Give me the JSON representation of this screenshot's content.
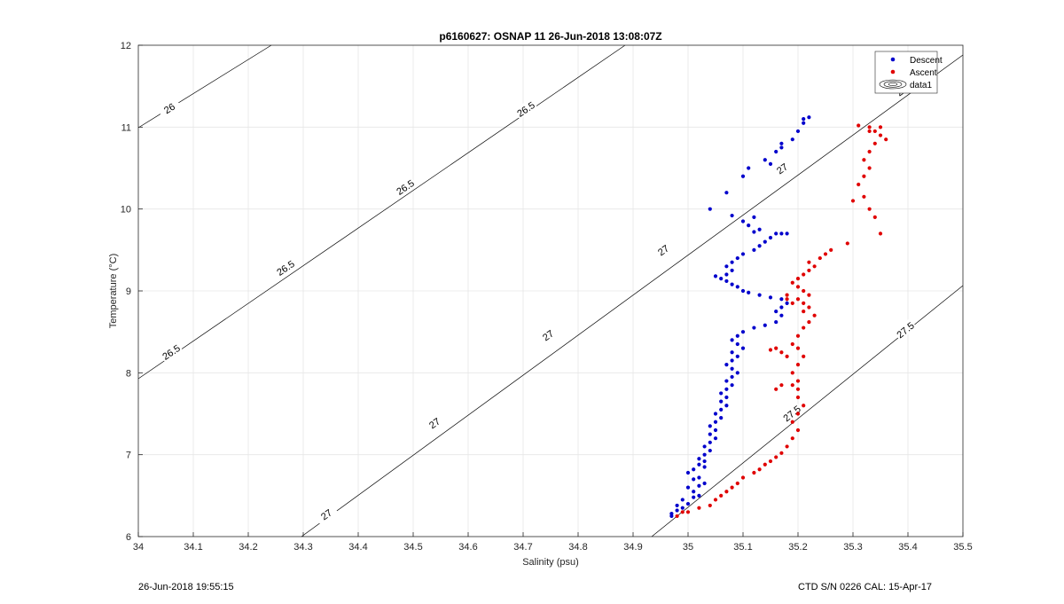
{
  "chart_data": {
    "type": "scatter",
    "title": "p6160627: OSNAP 11 26-Jun-2018 13:08:07Z",
    "xlabel": "Salinity (psu)",
    "ylabel": "Temperature (°C)",
    "xlim": [
      34,
      35.5
    ],
    "ylim": [
      6,
      12
    ],
    "x_ticks": [
      "34",
      "34.1",
      "34.2",
      "34.3",
      "34.4",
      "34.5",
      "34.6",
      "34.7",
      "34.8",
      "34.9",
      "35",
      "35.1",
      "35.2",
      "35.3",
      "35.4",
      "35.5"
    ],
    "y_ticks": [
      "6",
      "7",
      "8",
      "9",
      "10",
      "11",
      "12"
    ],
    "grid": true,
    "legend_position": "top-right",
    "legend": [
      "Descent",
      "Ascent",
      "data1"
    ],
    "colors": {
      "descent": "#0000cc",
      "ascent": "#e00000",
      "contour": "#000000"
    },
    "density_contours": {
      "levels": [
        26,
        26.5,
        27,
        27.5
      ],
      "line_labels": [
        "26",
        "26.5",
        "26.5",
        "26.5",
        "26.5",
        "27",
        "27",
        "27",
        "27",
        "27",
        "27.5",
        "27.5"
      ]
    },
    "series": [
      {
        "name": "Descent",
        "points": [
          [
            34.97,
            6.28
          ],
          [
            34.98,
            6.32
          ],
          [
            34.97,
            6.25
          ],
          [
            34.99,
            6.35
          ],
          [
            34.98,
            6.38
          ],
          [
            35.0,
            6.4
          ],
          [
            34.99,
            6.45
          ],
          [
            35.01,
            6.48
          ],
          [
            35.02,
            6.5
          ],
          [
            35.01,
            6.55
          ],
          [
            35.0,
            6.6
          ],
          [
            35.02,
            6.62
          ],
          [
            35.03,
            6.65
          ],
          [
            35.01,
            6.7
          ],
          [
            35.02,
            6.72
          ],
          [
            35.0,
            6.78
          ],
          [
            35.01,
            6.82
          ],
          [
            35.03,
            6.85
          ],
          [
            35.02,
            6.88
          ],
          [
            35.03,
            6.92
          ],
          [
            35.02,
            6.95
          ],
          [
            35.03,
            7.0
          ],
          [
            35.04,
            7.05
          ],
          [
            35.03,
            7.1
          ],
          [
            35.04,
            7.15
          ],
          [
            35.05,
            7.2
          ],
          [
            35.04,
            7.25
          ],
          [
            35.05,
            7.3
          ],
          [
            35.04,
            7.35
          ],
          [
            35.05,
            7.4
          ],
          [
            35.06,
            7.45
          ],
          [
            35.05,
            7.5
          ],
          [
            35.06,
            7.55
          ],
          [
            35.07,
            7.6
          ],
          [
            35.06,
            7.65
          ],
          [
            35.07,
            7.7
          ],
          [
            35.06,
            7.75
          ],
          [
            35.07,
            7.8
          ],
          [
            35.08,
            7.85
          ],
          [
            35.07,
            7.9
          ],
          [
            35.08,
            7.95
          ],
          [
            35.09,
            8.0
          ],
          [
            35.08,
            8.05
          ],
          [
            35.07,
            8.1
          ],
          [
            35.08,
            8.15
          ],
          [
            35.09,
            8.2
          ],
          [
            35.08,
            8.25
          ],
          [
            35.1,
            8.3
          ],
          [
            35.09,
            8.35
          ],
          [
            35.08,
            8.4
          ],
          [
            35.09,
            8.45
          ],
          [
            35.1,
            8.5
          ],
          [
            35.12,
            8.55
          ],
          [
            35.14,
            8.58
          ],
          [
            35.16,
            8.62
          ],
          [
            35.17,
            8.7
          ],
          [
            35.16,
            8.75
          ],
          [
            35.17,
            8.8
          ],
          [
            35.18,
            8.85
          ],
          [
            35.17,
            8.9
          ],
          [
            35.15,
            8.92
          ],
          [
            35.13,
            8.95
          ],
          [
            35.11,
            8.98
          ],
          [
            35.1,
            9.0
          ],
          [
            35.09,
            9.05
          ],
          [
            35.08,
            9.08
          ],
          [
            35.07,
            9.12
          ],
          [
            35.06,
            9.15
          ],
          [
            35.05,
            9.18
          ],
          [
            35.07,
            9.2
          ],
          [
            35.08,
            9.25
          ],
          [
            35.07,
            9.3
          ],
          [
            35.08,
            9.35
          ],
          [
            35.09,
            9.4
          ],
          [
            35.1,
            9.45
          ],
          [
            35.12,
            9.5
          ],
          [
            35.13,
            9.55
          ],
          [
            35.14,
            9.6
          ],
          [
            35.15,
            9.65
          ],
          [
            35.16,
            9.7
          ],
          [
            35.17,
            9.7
          ],
          [
            35.18,
            9.7
          ],
          [
            35.12,
            9.72
          ],
          [
            35.13,
            9.75
          ],
          [
            35.11,
            9.8
          ],
          [
            35.1,
            9.85
          ],
          [
            35.12,
            9.9
          ],
          [
            35.08,
            9.92
          ],
          [
            35.04,
            10.0
          ],
          [
            35.07,
            10.2
          ],
          [
            35.1,
            10.4
          ],
          [
            35.11,
            10.5
          ],
          [
            35.14,
            10.6
          ],
          [
            35.15,
            10.55
          ],
          [
            35.16,
            10.7
          ],
          [
            35.17,
            10.75
          ],
          [
            35.17,
            10.8
          ],
          [
            35.19,
            10.85
          ],
          [
            35.2,
            10.95
          ],
          [
            35.21,
            11.05
          ],
          [
            35.21,
            11.1
          ],
          [
            35.22,
            11.12
          ]
        ]
      },
      {
        "name": "Ascent",
        "points": [
          [
            34.98,
            6.25
          ],
          [
            34.99,
            6.3
          ],
          [
            35.0,
            6.3
          ],
          [
            35.02,
            6.35
          ],
          [
            35.04,
            6.38
          ],
          [
            35.05,
            6.45
          ],
          [
            35.06,
            6.5
          ],
          [
            35.07,
            6.55
          ],
          [
            35.08,
            6.6
          ],
          [
            35.09,
            6.65
          ],
          [
            35.1,
            6.72
          ],
          [
            35.12,
            6.78
          ],
          [
            35.13,
            6.82
          ],
          [
            35.14,
            6.88
          ],
          [
            35.15,
            6.92
          ],
          [
            35.16,
            6.97
          ],
          [
            35.17,
            7.02
          ],
          [
            35.18,
            7.1
          ],
          [
            35.19,
            7.2
          ],
          [
            35.2,
            7.3
          ],
          [
            35.19,
            7.4
          ],
          [
            35.2,
            7.5
          ],
          [
            35.21,
            7.6
          ],
          [
            35.2,
            7.7
          ],
          [
            35.2,
            7.8
          ],
          [
            35.19,
            7.85
          ],
          [
            35.2,
            7.9
          ],
          [
            35.19,
            8.0
          ],
          [
            35.2,
            8.1
          ],
          [
            35.21,
            8.2
          ],
          [
            35.2,
            8.3
          ],
          [
            35.19,
            8.35
          ],
          [
            35.2,
            8.45
          ],
          [
            35.21,
            8.55
          ],
          [
            35.22,
            8.62
          ],
          [
            35.23,
            8.7
          ],
          [
            35.21,
            8.75
          ],
          [
            35.22,
            8.8
          ],
          [
            35.21,
            8.85
          ],
          [
            35.2,
            8.9
          ],
          [
            35.22,
            8.95
          ],
          [
            35.21,
            9.0
          ],
          [
            35.2,
            9.05
          ],
          [
            35.19,
            9.1
          ],
          [
            35.2,
            9.15
          ],
          [
            35.21,
            9.2
          ],
          [
            35.22,
            9.25
          ],
          [
            35.23,
            9.3
          ],
          [
            35.22,
            9.35
          ],
          [
            35.24,
            9.4
          ],
          [
            35.25,
            9.45
          ],
          [
            35.26,
            9.5
          ],
          [
            35.29,
            9.58
          ],
          [
            35.18,
            8.95
          ],
          [
            35.18,
            8.9
          ],
          [
            35.19,
            8.85
          ],
          [
            35.16,
            8.3
          ],
          [
            35.17,
            8.25
          ],
          [
            35.18,
            8.2
          ],
          [
            35.15,
            8.28
          ],
          [
            35.17,
            7.85
          ],
          [
            35.16,
            7.8
          ],
          [
            35.3,
            10.1
          ],
          [
            35.31,
            10.3
          ],
          [
            35.32,
            10.4
          ],
          [
            35.33,
            10.5
          ],
          [
            35.32,
            10.6
          ],
          [
            35.33,
            10.7
          ],
          [
            35.34,
            10.8
          ],
          [
            35.35,
            10.9
          ],
          [
            35.34,
            10.95
          ],
          [
            35.35,
            11.0
          ],
          [
            35.36,
            10.85
          ],
          [
            35.33,
            11.0
          ],
          [
            35.31,
            11.02
          ],
          [
            35.32,
            10.15
          ],
          [
            35.33,
            10.0
          ],
          [
            35.34,
            9.9
          ],
          [
            35.35,
            9.7
          ],
          [
            35.33,
            10.95
          ]
        ]
      }
    ]
  },
  "footer": {
    "left": "26-Jun-2018 19:55:15",
    "right": "CTD S/N 0226  CAL: 15-Apr-17"
  }
}
